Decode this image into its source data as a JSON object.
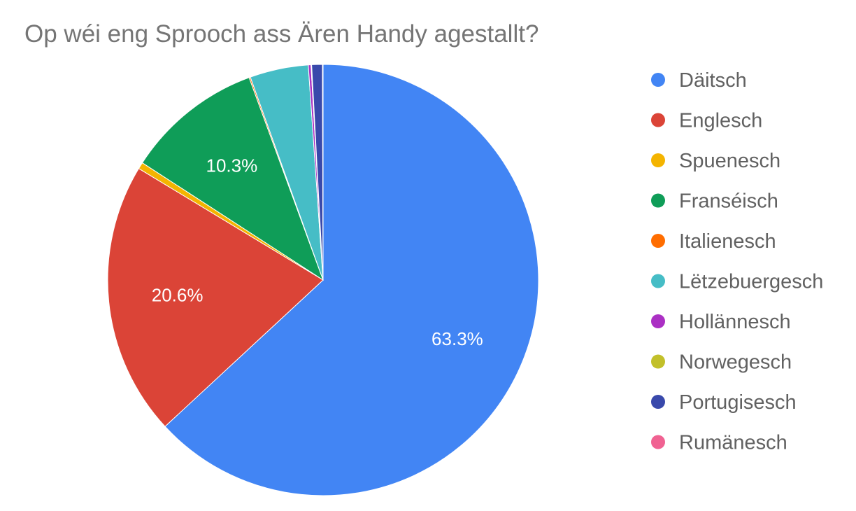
{
  "chart_data": {
    "type": "pie",
    "title": "Op wéi eng Sprooch ass Ären Handy agestallt?",
    "legend_position": "right",
    "slices": [
      {
        "name": "Däitsch",
        "value": 63.3,
        "color": "#4285F4",
        "label": "63.3%"
      },
      {
        "name": "Englesch",
        "value": 20.6,
        "color": "#DB4437",
        "label": "20.6%"
      },
      {
        "name": "Spuenesch",
        "value": 0.5,
        "color": "#F4B400",
        "label": ""
      },
      {
        "name": "Franséisch",
        "value": 10.3,
        "color": "#0F9D58",
        "label": "10.3%"
      },
      {
        "name": "Italienesch",
        "value": 0.1,
        "color": "#FF6D00",
        "label": ""
      },
      {
        "name": "Lëtzebuergesch",
        "value": 4.4,
        "color": "#46BDC6",
        "label": ""
      },
      {
        "name": "Hollännesch",
        "value": 0.2,
        "color": "#AB30C4",
        "label": ""
      },
      {
        "name": "Norwegesch",
        "value": 0.05,
        "color": "#C2C02A",
        "label": ""
      },
      {
        "name": "Portugisesch",
        "value": 0.8,
        "color": "#3949AB",
        "label": ""
      },
      {
        "name": "Rumänesch",
        "value": 0.05,
        "color": "#F06292",
        "label": ""
      }
    ]
  }
}
